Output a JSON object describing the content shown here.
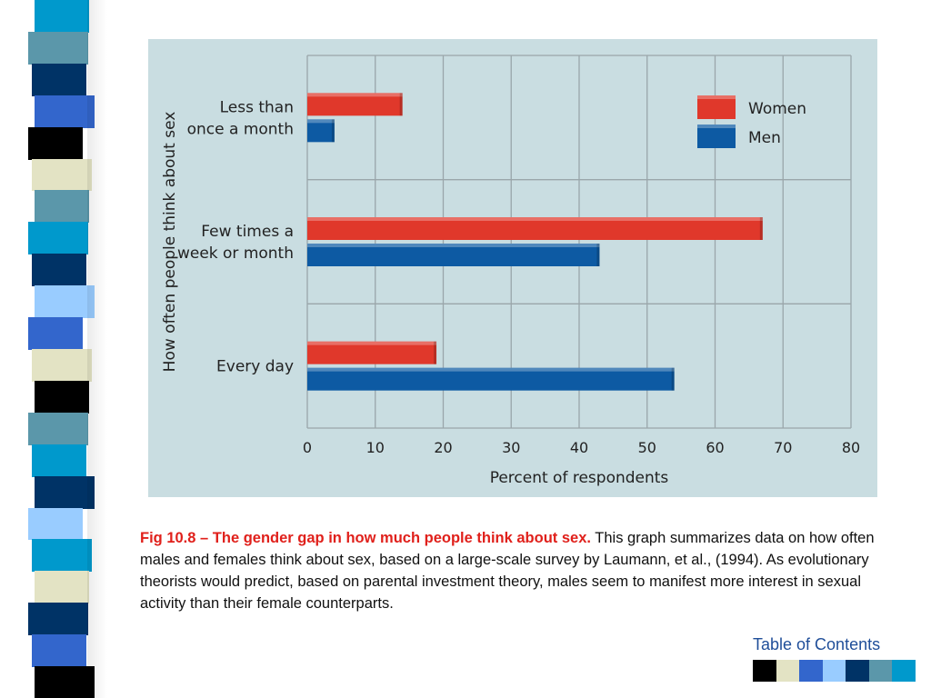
{
  "slide": {
    "caption_title": "Fig 10.8 – The gender gap in how much people think about sex.",
    "caption_body": " This graph summarizes data on how often males and females think about sex, based on a large-scale survey by Laumann, et al., (1994). As evolutionary theorists would predict, based on parental investment theory, males seem to manifest more interest in sexual activity than their female counterparts.",
    "toc_label": "Table of Contents",
    "swatch_colors": [
      "#000000",
      "#e3e3c4",
      "#3366cc",
      "#99ccff",
      "#003366",
      "#5b97aa",
      "#0099cc"
    ],
    "strip_colors": [
      "#0099cc",
      "#5b97aa",
      "#003366",
      "#3366cc",
      "#000000",
      "#e3e3c4",
      "#5b97aa",
      "#0099cc",
      "#003366",
      "#99ccff",
      "#3366cc",
      "#e3e3c4",
      "#000000",
      "#5b97aa",
      "#0099cc",
      "#003366",
      "#99ccff",
      "#0099cc",
      "#e3e3c4",
      "#003366",
      "#3366cc",
      "#000000"
    ]
  },
  "chart_data": {
    "type": "bar",
    "orientation": "horizontal",
    "categories": [
      [
        "Less than",
        "once a month"
      ],
      [
        "Few times a",
        "week or month"
      ],
      [
        "Every day"
      ]
    ],
    "series": [
      {
        "name": "Women",
        "color": "#e0382b",
        "values": [
          14,
          67,
          19
        ]
      },
      {
        "name": "Men",
        "color": "#0d5aa3",
        "values": [
          4,
          43,
          54
        ]
      }
    ],
    "xlabel": "Percent of respondents",
    "ylabel": "How often people think about sex",
    "xlim": [
      0,
      80
    ],
    "xticks": [
      0,
      10,
      20,
      30,
      40,
      50,
      60,
      70,
      80
    ],
    "grid": true,
    "legend_position": "top-right",
    "background": "#c9dde1"
  }
}
